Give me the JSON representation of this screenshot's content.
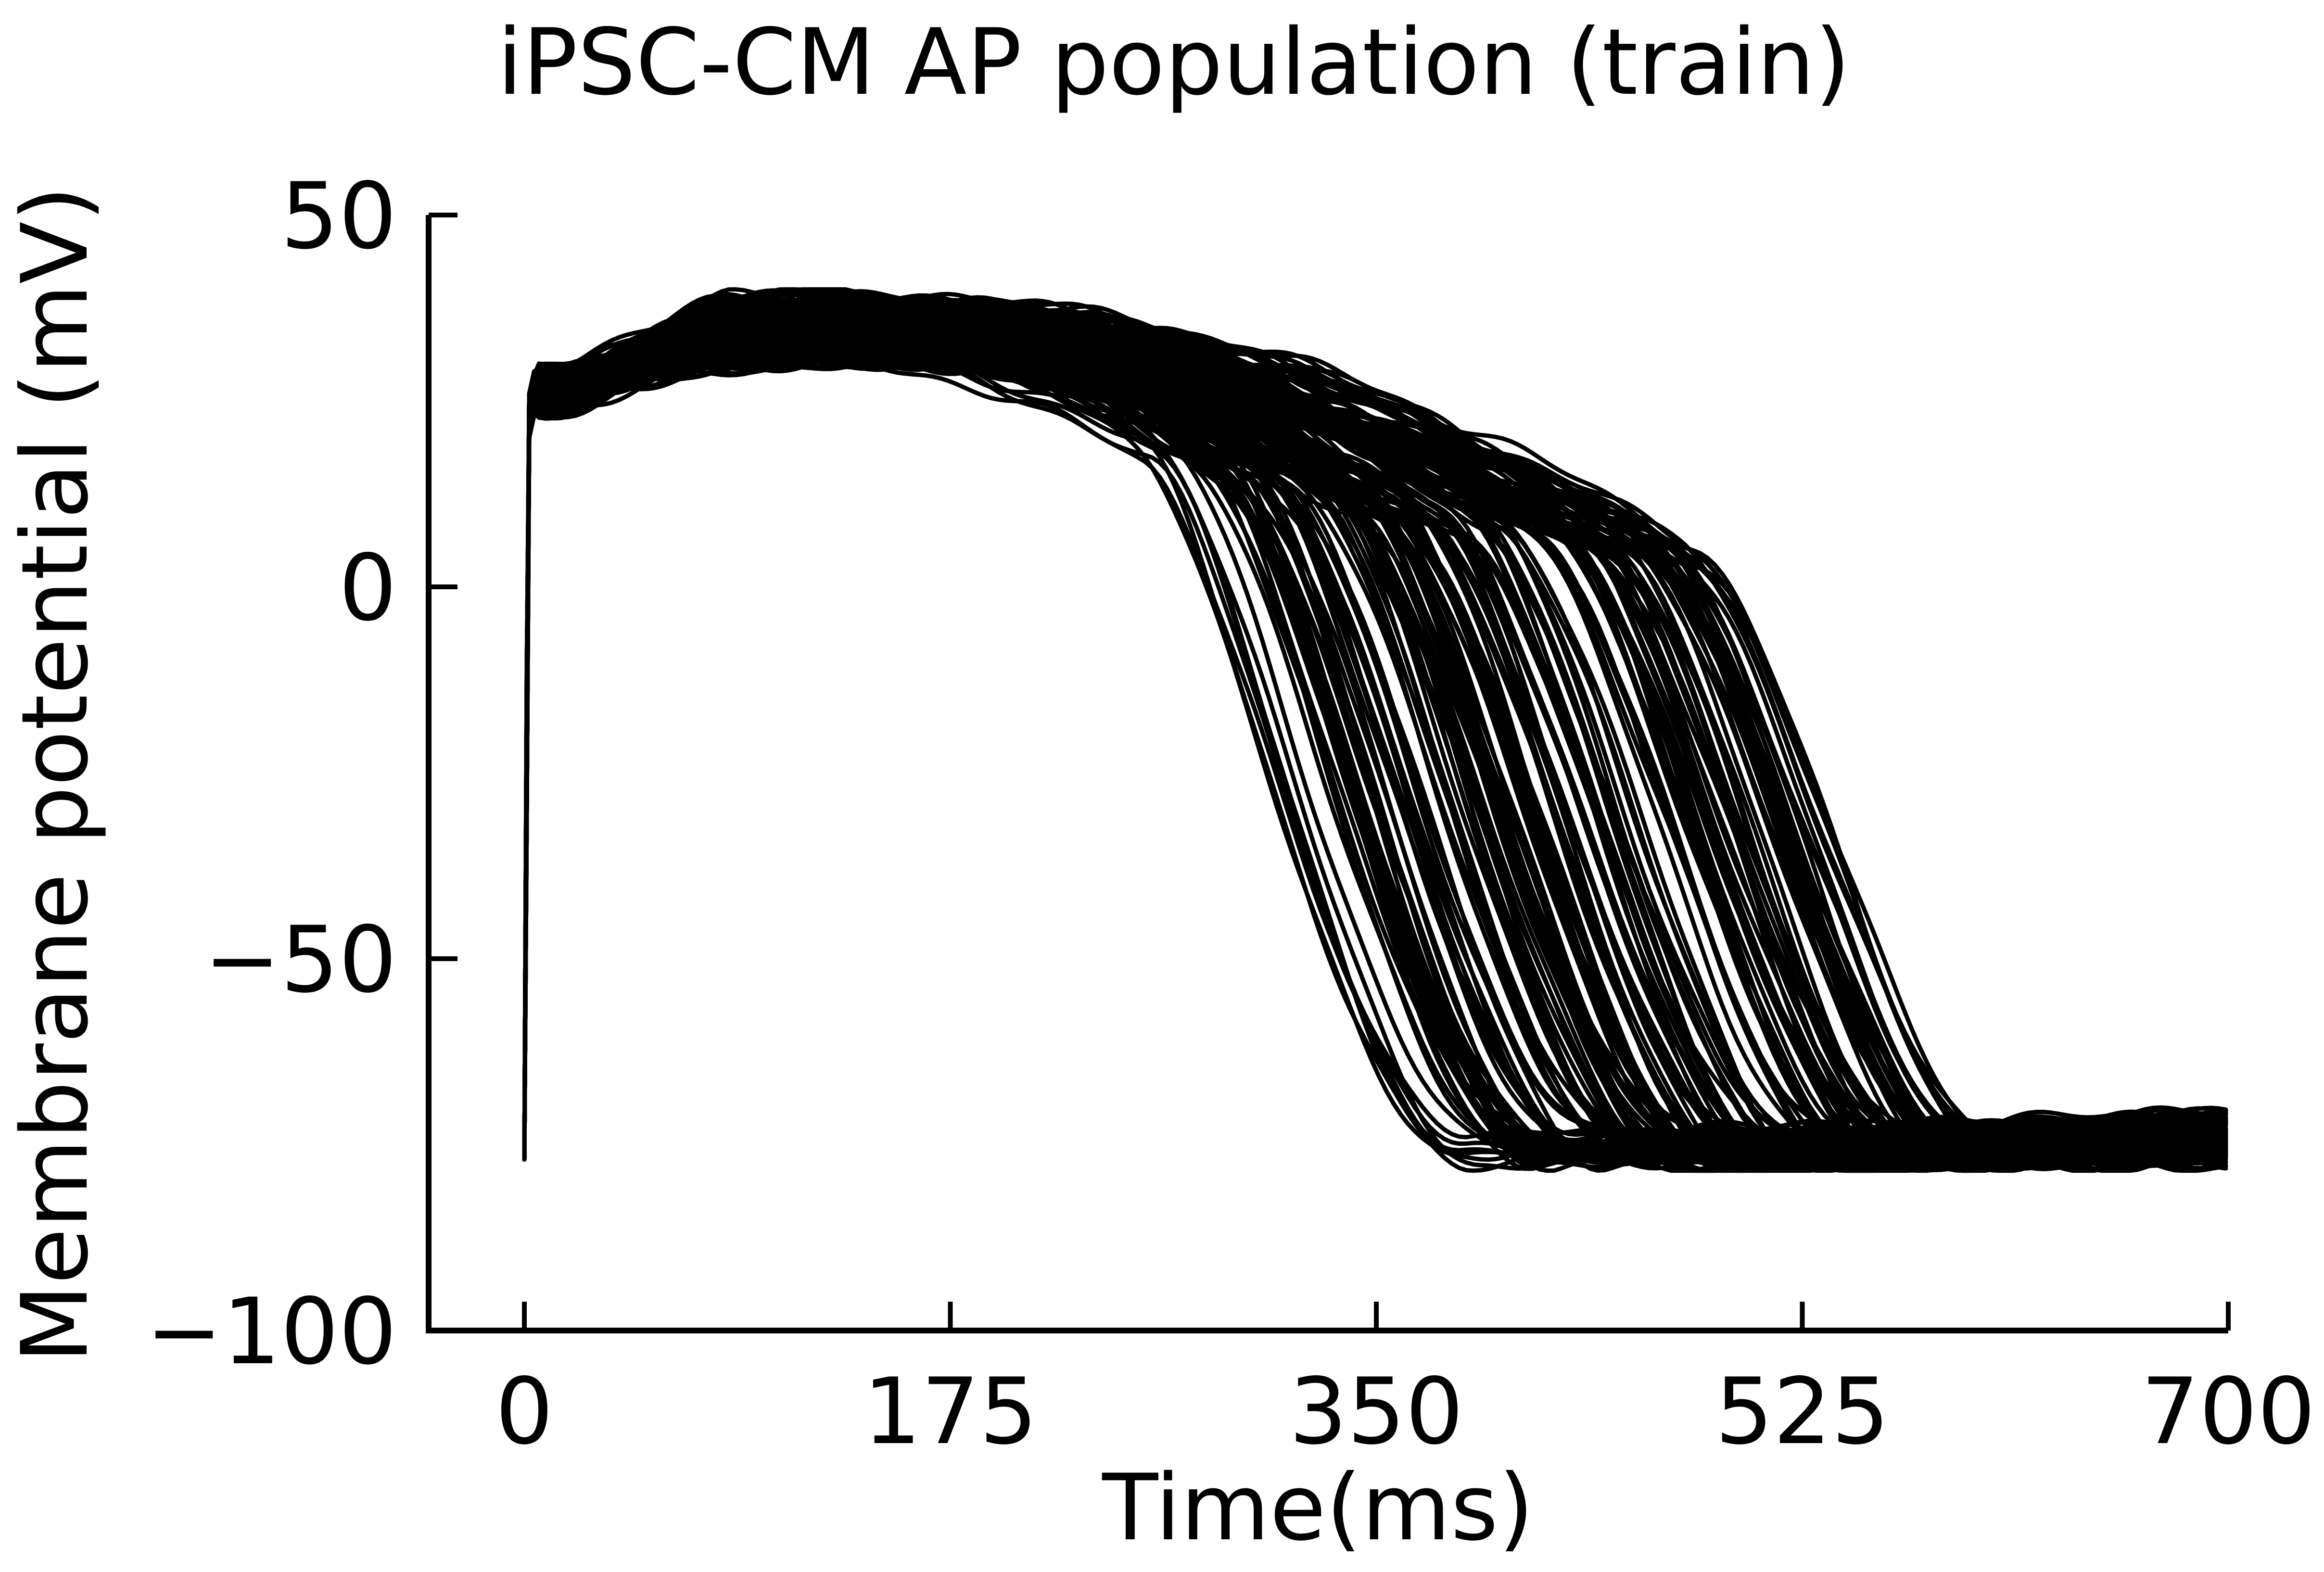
{
  "chart_data": {
    "type": "line",
    "title": "iPSC-CM AP population (train)",
    "xlabel": "Time(ms)",
    "ylabel": "Membrane potential (mV)",
    "xlim": [
      0,
      700
    ],
    "ylim": [
      -100,
      50
    ],
    "xticks": [
      0,
      175,
      350,
      525,
      700
    ],
    "yticks": [
      50,
      0,
      -50,
      -100
    ],
    "xtick_labels": [
      "0",
      "175",
      "350",
      "525",
      "700"
    ],
    "ytick_labels": [
      "50",
      "0",
      "−50",
      "−100"
    ],
    "grid": false,
    "legend": "none",
    "line_color": "#000000",
    "population": {
      "count": 160,
      "resting_potential_range": [
        -78,
        -74
      ],
      "peak_range": [
        25,
        38
      ],
      "plateau_max_range": [
        30,
        39
      ],
      "apd_end_range_ms": [
        380,
        610
      ]
    },
    "representative_traces": [
      {
        "x": [
          0,
          2,
          5,
          10,
          50,
          100,
          200,
          300,
          350,
          380,
          400,
          450,
          700
        ],
        "y": [
          -77,
          20,
          25,
          26,
          29,
          29,
          20,
          2,
          -20,
          -50,
          -75,
          -77,
          -76
        ]
      },
      {
        "x": [
          0,
          2,
          5,
          10,
          50,
          100,
          200,
          300,
          400,
          450,
          500,
          550,
          700
        ],
        "y": [
          -77,
          22,
          27,
          28,
          33,
          37,
          27,
          11,
          -12,
          -38,
          -55,
          -74,
          -73
        ]
      },
      {
        "x": [
          0,
          2,
          5,
          10,
          50,
          100,
          200,
          300,
          400,
          450,
          500,
          560,
          610,
          700
        ],
        "y": [
          -77,
          25,
          28,
          30,
          35,
          38,
          30,
          14,
          -3,
          -27,
          -48,
          -57,
          -72,
          -70
        ]
      }
    ]
  }
}
